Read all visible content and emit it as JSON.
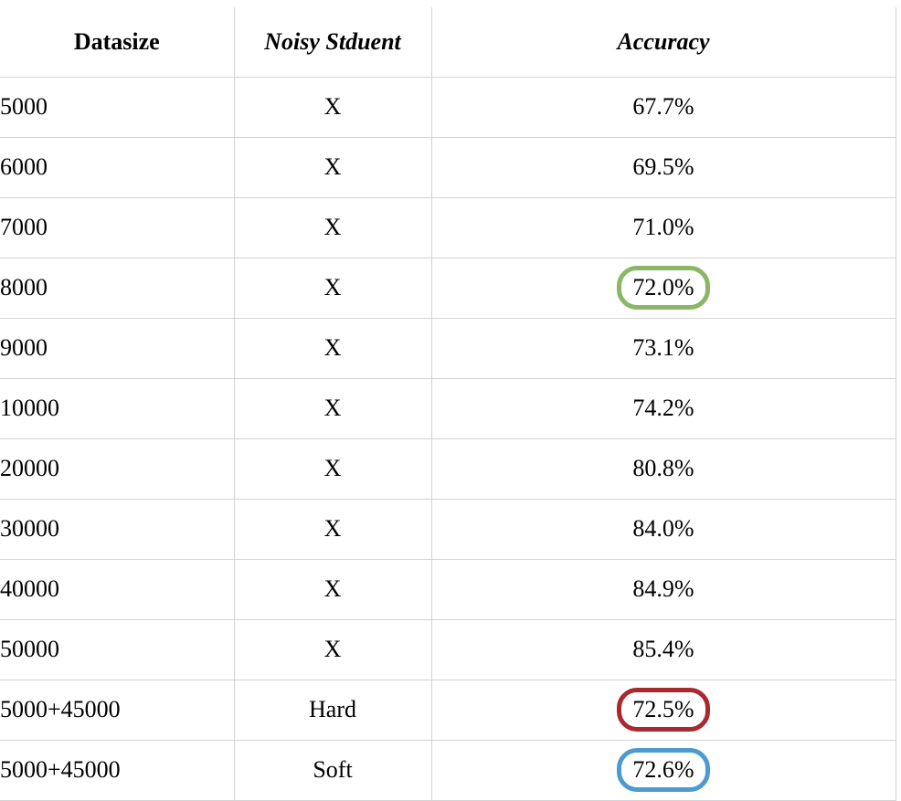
{
  "table": {
    "headers": {
      "datasize": "Datasize",
      "noisy_student": "Noisy Stduent",
      "accuracy": "Accuracy"
    },
    "rows": [
      {
        "datasize": "5000",
        "noisy_student": "X",
        "accuracy": "67.7%",
        "highlight": ""
      },
      {
        "datasize": "6000",
        "noisy_student": "X",
        "accuracy": "69.5%",
        "highlight": ""
      },
      {
        "datasize": "7000",
        "noisy_student": "X",
        "accuracy": "71.0%",
        "highlight": ""
      },
      {
        "datasize": "8000",
        "noisy_student": "X",
        "accuracy": "72.0%",
        "highlight": "#8ab665"
      },
      {
        "datasize": "9000",
        "noisy_student": "X",
        "accuracy": "73.1%",
        "highlight": ""
      },
      {
        "datasize": "10000",
        "noisy_student": "X",
        "accuracy": "74.2%",
        "highlight": ""
      },
      {
        "datasize": "20000",
        "noisy_student": "X",
        "accuracy": "80.8%",
        "highlight": ""
      },
      {
        "datasize": "30000",
        "noisy_student": "X",
        "accuracy": "84.0%",
        "highlight": ""
      },
      {
        "datasize": "40000",
        "noisy_student": "X",
        "accuracy": "84.9%",
        "highlight": ""
      },
      {
        "datasize": "50000",
        "noisy_student": "X",
        "accuracy": "85.4%",
        "highlight": ""
      },
      {
        "datasize": "5000+45000",
        "noisy_student": "Hard",
        "accuracy": "72.5%",
        "highlight": "#a82a2f"
      },
      {
        "datasize": "5000+45000",
        "noisy_student": "Soft",
        "accuracy": "72.6%",
        "highlight": "#4d9ad0"
      }
    ]
  }
}
